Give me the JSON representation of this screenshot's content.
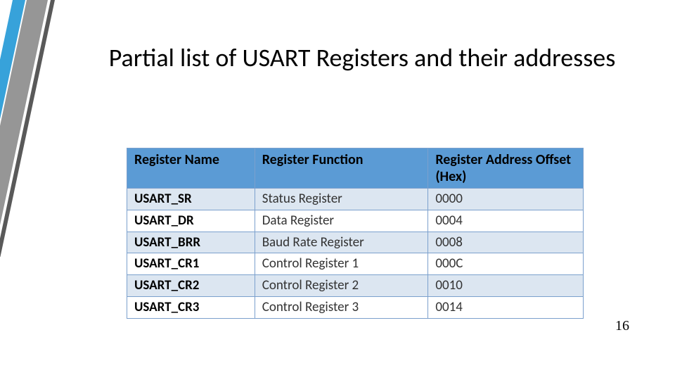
{
  "title": "Partial list of USART Registers and their addresses",
  "page_number": "16",
  "decoration": {
    "stripe_gray": "#969696",
    "stripe_dark": "#595959",
    "stripe_blue": "#37a2da"
  },
  "table": {
    "header_bg": "#5b9bd5",
    "row_colors": [
      "#dce6f1",
      "#ffffff"
    ],
    "border_color": "#7ba0cd",
    "columns": [
      "Register Name",
      "Register Function",
      "Register Address Offset (Hex)"
    ],
    "rows": [
      {
        "name": "USART_SR",
        "func": "Status Register",
        "addr": "0000"
      },
      {
        "name": "USART_DR",
        "func": "Data Register",
        "addr": "0004"
      },
      {
        "name": "USART_BRR",
        "func": "Baud Rate Register",
        "addr": "0008"
      },
      {
        "name": "USART_CR1",
        "func": "Control Register 1",
        "addr": "000C"
      },
      {
        "name": "USART_CR2",
        "func": "Control Register 2",
        "addr": "0010"
      },
      {
        "name": "USART_CR3",
        "func": "Control Register 3",
        "addr": "0014"
      }
    ]
  }
}
